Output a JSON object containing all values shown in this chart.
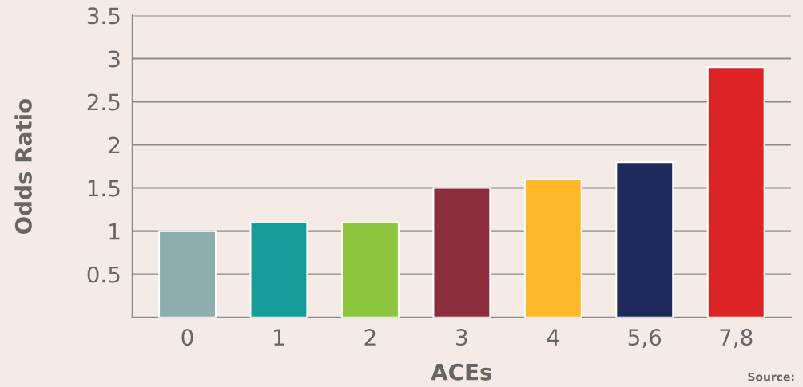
{
  "chart_data": {
    "type": "bar",
    "xlabel": "ACEs",
    "ylabel": "Odds Ratio",
    "categories": [
      "0",
      "1",
      "2",
      "3",
      "4",
      "5,6",
      "7,8"
    ],
    "values": [
      1.0,
      1.1,
      1.1,
      1.5,
      1.6,
      1.8,
      2.9
    ],
    "colors": [
      "#8cadab",
      "#189c98",
      "#8dc63f",
      "#8b2d3c",
      "#fdb92a",
      "#1f2a5c",
      "#dc2326"
    ],
    "ylim": [
      0,
      3.5
    ],
    "yticks": [
      0.5,
      1,
      1.5,
      2,
      2.5,
      3,
      3.5
    ],
    "grid": "y",
    "annotations": [
      "Source:"
    ]
  }
}
